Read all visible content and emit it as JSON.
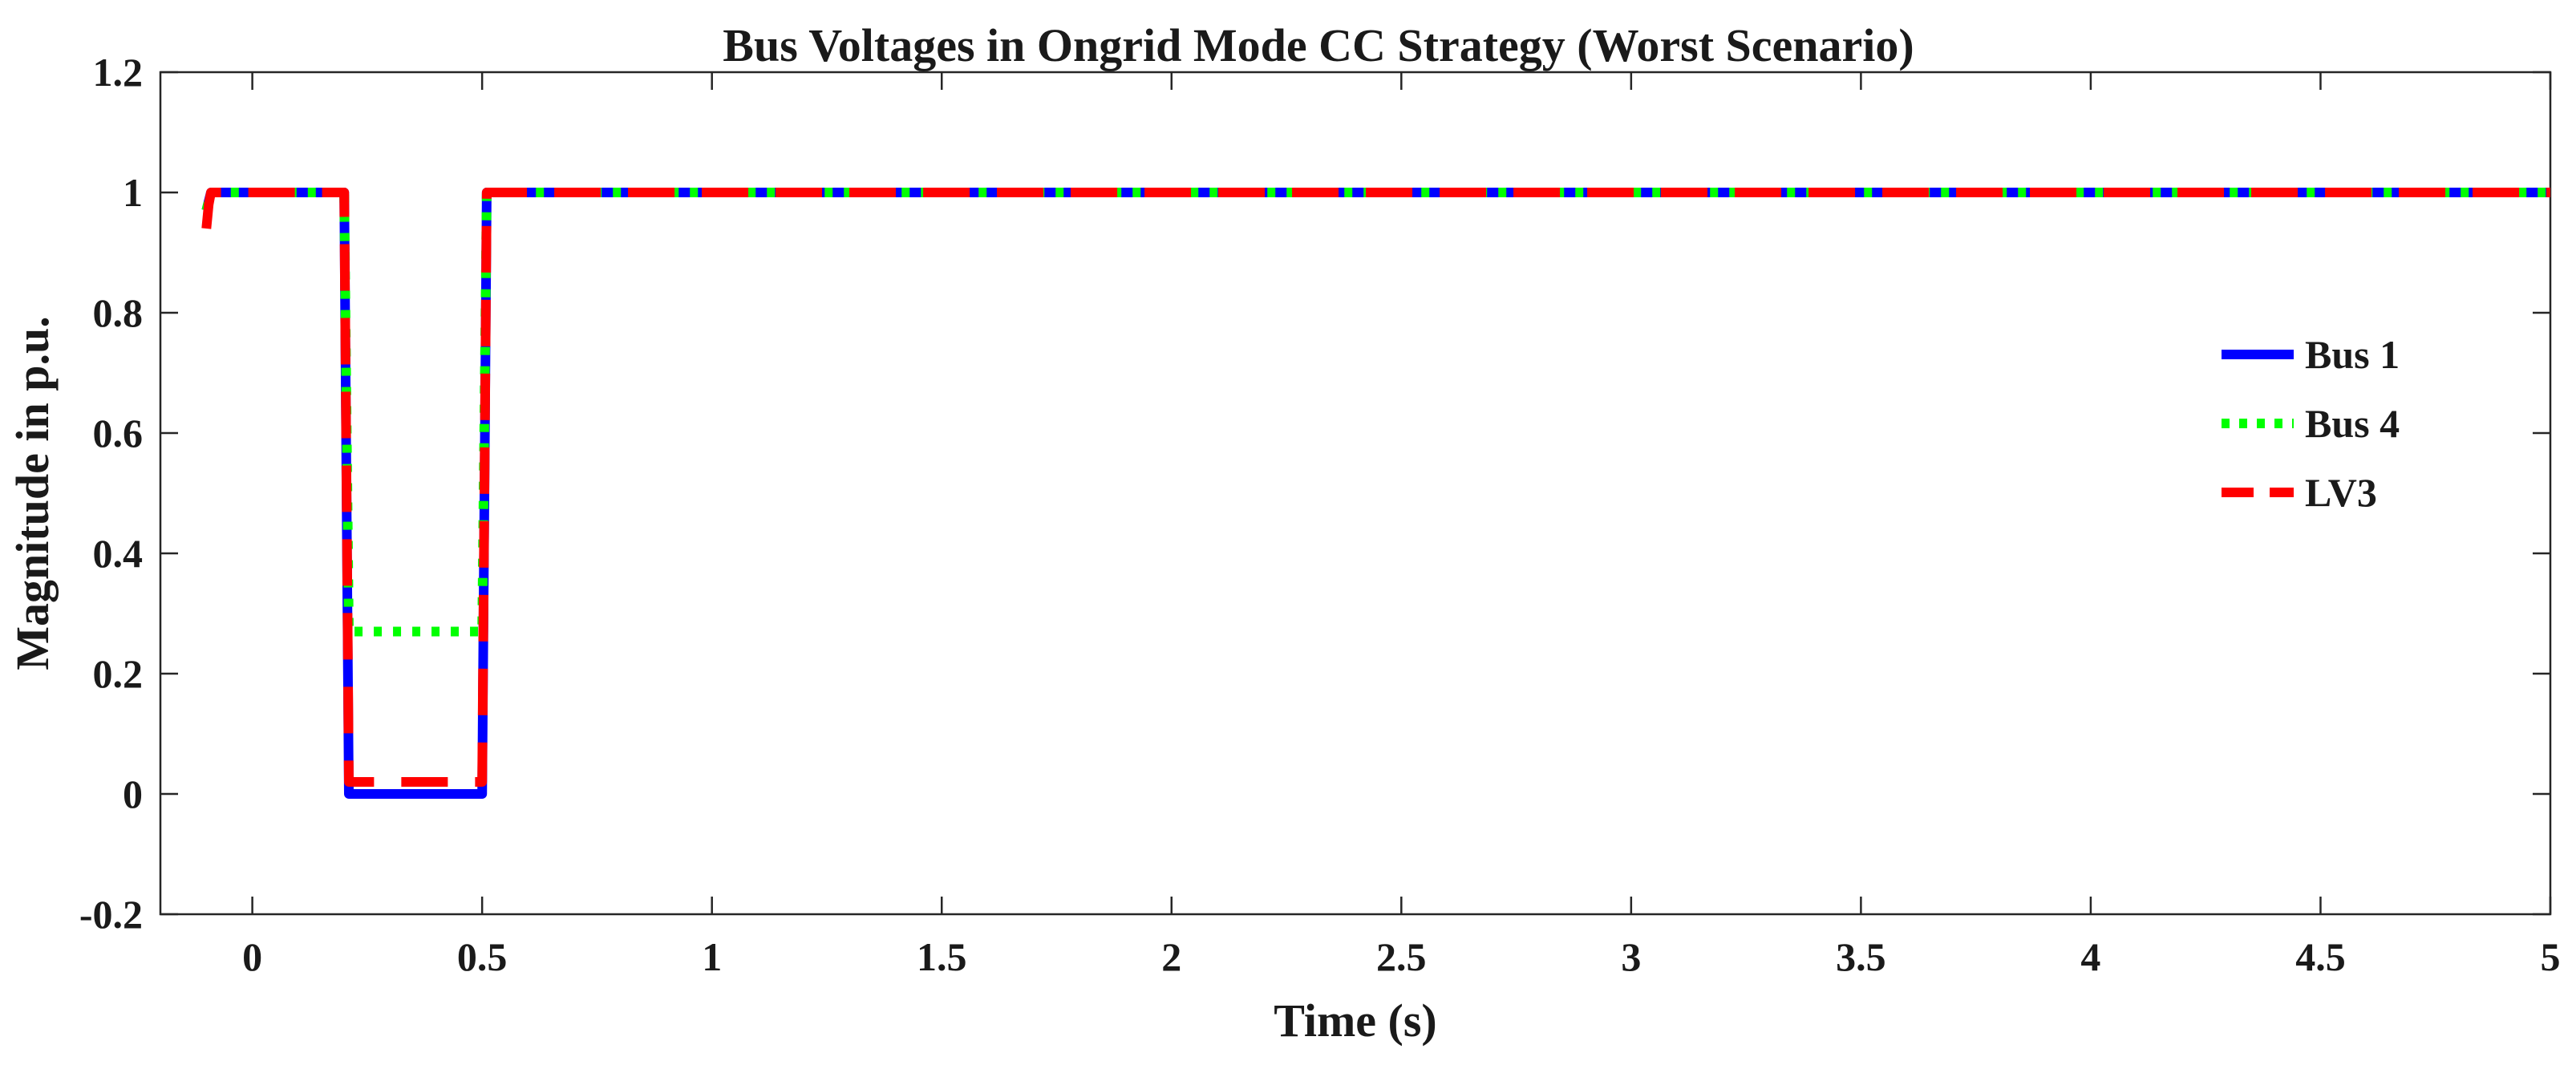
{
  "chart_data": {
    "type": "line",
    "title": "Bus Voltages in Ongrid Mode CC Strategy (Worst Scenario)",
    "xlabel": "Time (s)",
    "ylabel": "Magnitude in p.u.",
    "xlim": [
      -0.2,
      5
    ],
    "ylim": [
      -0.2,
      1.2
    ],
    "xticks": [
      0,
      0.5,
      1,
      1.5,
      2,
      2.5,
      3,
      3.5,
      4,
      4.5,
      5
    ],
    "xtick_labels": [
      "0",
      "0.5",
      "1",
      "1.5",
      "2",
      "2.5",
      "3",
      "3.5",
      "4",
      "4.5",
      "5"
    ],
    "yticks": [
      -0.2,
      0,
      0.2,
      0.4,
      0.6,
      0.8,
      1,
      1.2
    ],
    "ytick_labels": [
      "-0.2",
      "0",
      "0.2",
      "0.4",
      "0.6",
      "0.8",
      "1",
      "1.2"
    ],
    "grid": false,
    "legend_position": "right",
    "series": [
      {
        "name": "Bus 1",
        "color": "#0000ff",
        "style": "solid",
        "x": [
          -0.1,
          -0.09,
          0.2,
          0.21,
          0.5,
          0.51,
          5
        ],
        "y": [
          0.97,
          1.0,
          1.0,
          0.0,
          0.0,
          1.0,
          1.0
        ]
      },
      {
        "name": "Bus 4",
        "color": "#00ff00",
        "style": "dotted",
        "x": [
          -0.1,
          -0.09,
          0.2,
          0.21,
          0.5,
          0.51,
          5
        ],
        "y": [
          0.97,
          1.0,
          1.0,
          0.27,
          0.27,
          1.0,
          1.0
        ]
      },
      {
        "name": "LV3",
        "color": "#ff0000",
        "style": "dashed",
        "x": [
          -0.1,
          -0.095,
          -0.09,
          0.2,
          0.21,
          0.5,
          0.51,
          5
        ],
        "y": [
          0.94,
          0.98,
          1.0,
          1.0,
          0.02,
          0.02,
          1.0,
          1.0
        ]
      }
    ]
  }
}
